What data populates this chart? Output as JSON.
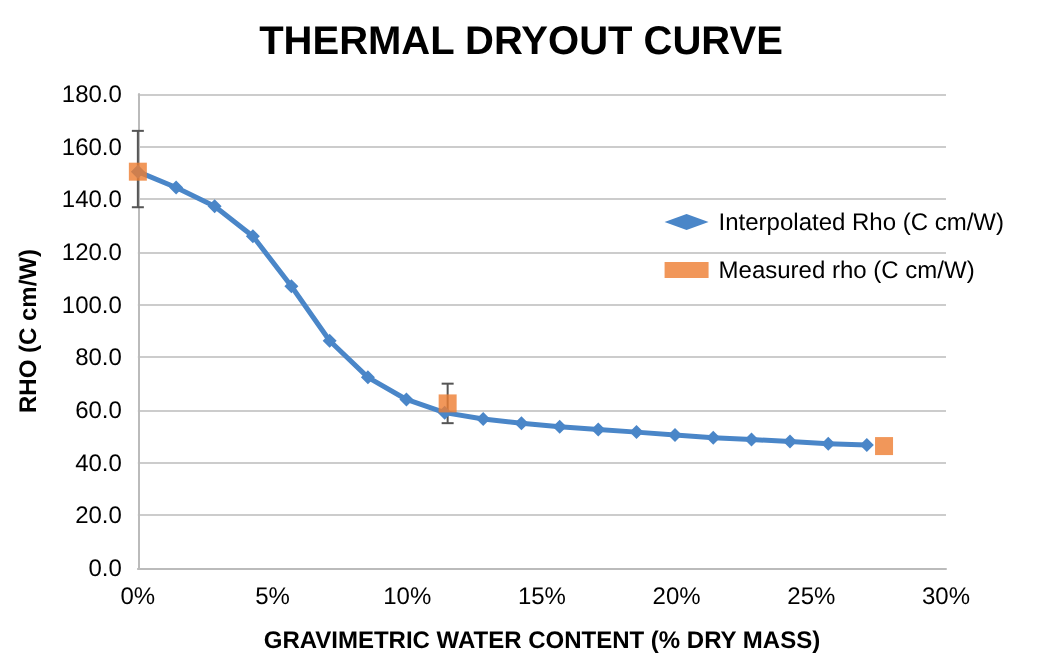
{
  "chart_data": {
    "type": "line",
    "title": "THERMAL DRYOUT CURVE",
    "xlabel": "GRAVIMETRIC WATER CONTENT (% DRY MASS)",
    "ylabel": "RHO (C cm/W)",
    "xlim": [
      0,
      30
    ],
    "xticks": [
      {
        "value": 0,
        "label": "0%"
      },
      {
        "value": 5,
        "label": "5%"
      },
      {
        "value": 10,
        "label": "10%"
      },
      {
        "value": 15,
        "label": "15%"
      },
      {
        "value": 20,
        "label": "20%"
      },
      {
        "value": 25,
        "label": "25%"
      },
      {
        "value": 30,
        "label": "30%"
      }
    ],
    "ylim": [
      0,
      180
    ],
    "yticks": [
      {
        "value": 0,
        "label": "0.0"
      },
      {
        "value": 20,
        "label": "20.0"
      },
      {
        "value": 40,
        "label": "40.0"
      },
      {
        "value": 60,
        "label": "60.0"
      },
      {
        "value": 80,
        "label": "80.0"
      },
      {
        "value": 100,
        "label": "100.0"
      },
      {
        "value": 120,
        "label": "120.0"
      },
      {
        "value": 140,
        "label": "140.0"
      },
      {
        "value": 160,
        "label": "160.0"
      },
      {
        "value": 180,
        "label": "180.0"
      }
    ],
    "grid": "y",
    "legend": "right",
    "series": [
      {
        "name": "Interpolated Rho (C cm/W)",
        "color": "#4a86c8",
        "marker": "diamond",
        "x": [
          0,
          1.42,
          2.85,
          4.27,
          5.7,
          7.12,
          8.54,
          9.97,
          11.39,
          12.82,
          14.24,
          15.66,
          17.09,
          18.51,
          19.94,
          21.36,
          22.78,
          24.21,
          25.63,
          27.06
        ],
        "values": [
          150.5,
          144.5,
          137.4,
          126,
          107,
          86.3,
          72.4,
          64,
          59,
          56.6,
          55,
          53.6,
          52.6,
          51.6,
          50.5,
          49.5,
          48.8,
          48,
          47.2,
          46.7
        ]
      },
      {
        "name": "Measured rho (C cm/W)",
        "type": "scatter",
        "color": "#ed7d31",
        "marker": "square",
        "x": [
          0,
          11.5,
          27.7
        ],
        "values": [
          150.5,
          62.5,
          46.3
        ],
        "errors": [
          [
            137,
            166
          ],
          [
            55,
            70
          ],
          null
        ]
      }
    ]
  }
}
